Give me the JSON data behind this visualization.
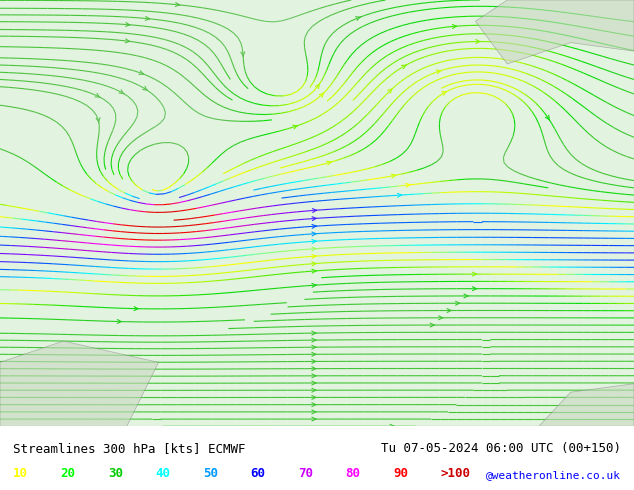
{
  "title_left": "Streamlines 300 hPa [kts] ECMWF",
  "title_right": "Tu 07-05-2024 06:00 UTC (00+150)",
  "credit": "@weatheronline.co.uk",
  "legend_values": [
    "10",
    "20",
    "30",
    "40",
    "50",
    "60",
    "70",
    "80",
    "90",
    ">100"
  ],
  "legend_colors": [
    "#ffff00",
    "#00ff00",
    "#00cc00",
    "#00ffff",
    "#0099ff",
    "#0000ff",
    "#cc00ff",
    "#ff00ff",
    "#ff0000",
    "#cc0000"
  ],
  "bg_color": "#ffffff",
  "map_bg": "#e8f4e8",
  "title_color": "#000000",
  "credit_color": "#0000ff",
  "figure_width": 6.34,
  "figure_height": 4.9,
  "dpi": 100,
  "streamline_colors_palette": [
    "#c8f0c8",
    "#a0e080",
    "#78d060",
    "#50c040",
    "#00ff00",
    "#00cc00",
    "#ffff00",
    "#ffd700",
    "#00ffff",
    "#00bfff",
    "#0080ff",
    "#0000ff",
    "#8000ff",
    "#ff00ff",
    "#ff0080",
    "#ff0000"
  ]
}
